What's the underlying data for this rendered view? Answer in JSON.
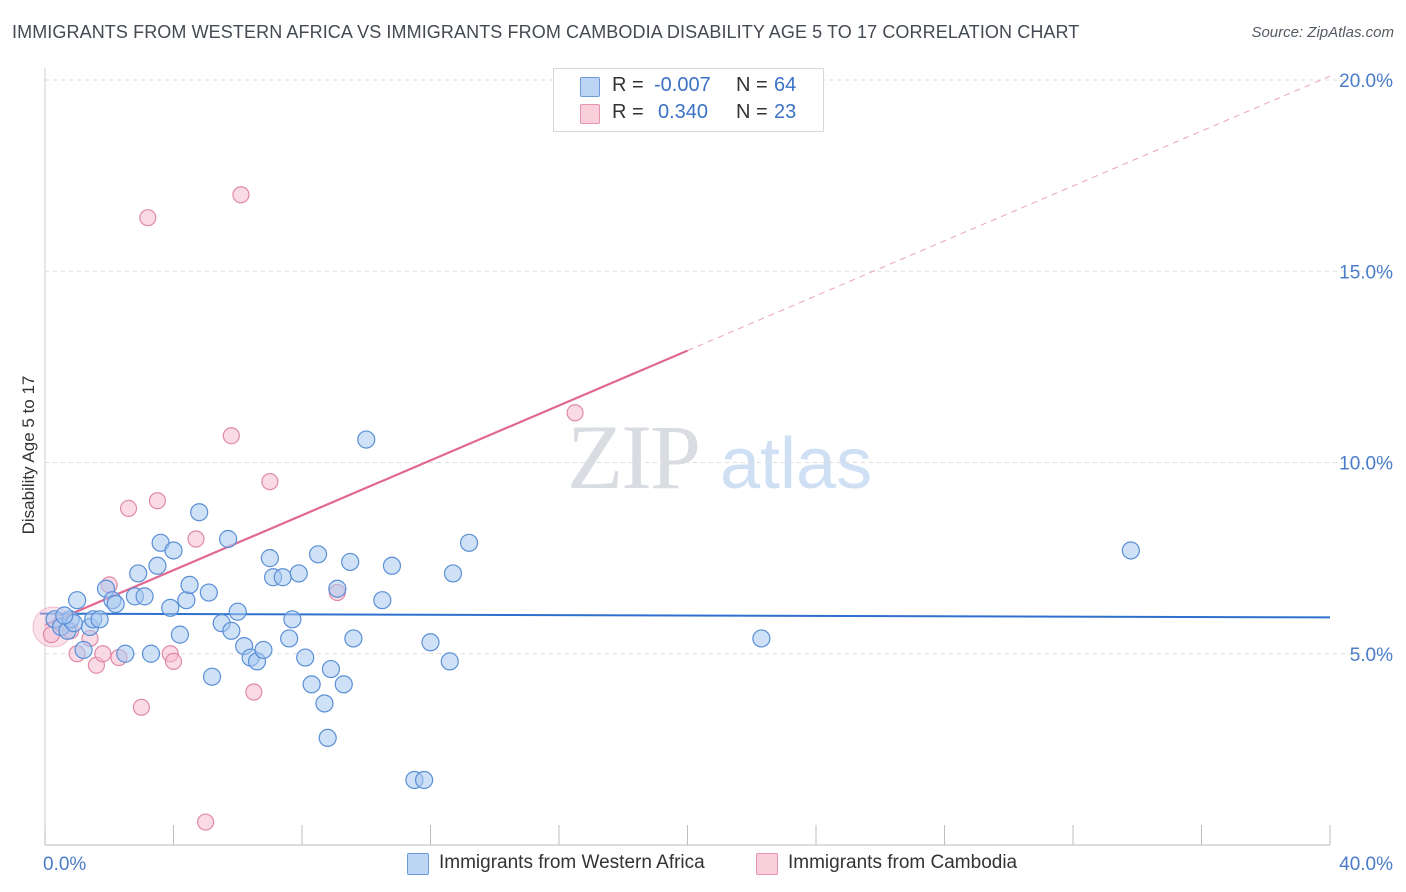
{
  "header": {
    "title": "IMMIGRANTS FROM WESTERN AFRICA VS IMMIGRANTS FROM CAMBODIA DISABILITY AGE 5 TO 17 CORRELATION CHART",
    "source": "Source: ZipAtlas.com"
  },
  "watermark": {
    "zip": "ZIP",
    "atlas": "atlas"
  },
  "legend": {
    "r_label": "R =",
    "n_label": "N =",
    "series1": {
      "r": "-0.007",
      "n": "64"
    },
    "series2": {
      "r": "0.340",
      "n": "23"
    }
  },
  "bottom_legend": {
    "series1": "Immigrants from Western Africa",
    "series2": "Immigrants from Cambodia"
  },
  "colors": {
    "series1_fill": "#a8c8f0",
    "series1_stroke": "#5a8fd6",
    "series1_line": "#2f6fce",
    "series2_fill": "#f6bcd0",
    "series2_stroke": "#e08aa8",
    "series2_line": "#e06890",
    "tick_text": "#4a7cc9"
  },
  "chart_data": {
    "type": "scatter",
    "title": "IMMIGRANTS FROM WESTERN AFRICA VS IMMIGRANTS FROM CAMBODIA DISABILITY AGE 5 TO 17 CORRELATION CHART",
    "xlabel": "",
    "ylabel": "Disability Age 5 to 17",
    "xlim": [
      0,
      40
    ],
    "ylim": [
      0,
      20
    ],
    "x_tick_labels": [
      {
        "value": 0,
        "label": "0.0%"
      },
      {
        "value": 40,
        "label": "40.0%"
      }
    ],
    "y_tick_labels": [
      {
        "value": 5,
        "label": "5.0%"
      },
      {
        "value": 10,
        "label": "10.0%"
      },
      {
        "value": 15,
        "label": "15.0%"
      },
      {
        "value": 20,
        "label": "20.0%"
      }
    ],
    "grid": true,
    "legend_position": "top-center",
    "series": [
      {
        "name": "Immigrants from Western Africa",
        "r": -0.007,
        "n": 64,
        "trend": {
          "x": [
            0,
            40
          ],
          "y": [
            6.05,
            5.95
          ],
          "style": "solid"
        },
        "points": [
          [
            0.3,
            5.9
          ],
          [
            0.5,
            5.7
          ],
          [
            0.7,
            5.6
          ],
          [
            0.8,
            5.9
          ],
          [
            0.9,
            5.8
          ],
          [
            1.0,
            6.4
          ],
          [
            1.2,
            5.1
          ],
          [
            1.4,
            5.7
          ],
          [
            1.5,
            5.9
          ],
          [
            1.7,
            5.9
          ],
          [
            1.9,
            6.7
          ],
          [
            2.1,
            6.4
          ],
          [
            2.2,
            6.3
          ],
          [
            2.5,
            5.0
          ],
          [
            2.8,
            6.5
          ],
          [
            2.9,
            7.1
          ],
          [
            3.1,
            6.5
          ],
          [
            3.3,
            5.0
          ],
          [
            3.5,
            7.3
          ],
          [
            3.6,
            7.9
          ],
          [
            3.9,
            6.2
          ],
          [
            4.0,
            7.7
          ],
          [
            4.2,
            5.5
          ],
          [
            4.4,
            6.4
          ],
          [
            4.5,
            6.8
          ],
          [
            4.8,
            8.7
          ],
          [
            5.1,
            6.6
          ],
          [
            5.2,
            4.4
          ],
          [
            5.5,
            5.8
          ],
          [
            5.7,
            8.0
          ],
          [
            5.8,
            5.6
          ],
          [
            6.0,
            6.1
          ],
          [
            6.2,
            5.2
          ],
          [
            6.4,
            4.9
          ],
          [
            6.6,
            4.8
          ],
          [
            6.8,
            5.1
          ],
          [
            7.0,
            7.5
          ],
          [
            7.1,
            7.0
          ],
          [
            7.4,
            7.0
          ],
          [
            7.6,
            5.4
          ],
          [
            7.7,
            5.9
          ],
          [
            7.9,
            7.1
          ],
          [
            8.1,
            4.9
          ],
          [
            8.3,
            4.2
          ],
          [
            8.5,
            7.6
          ],
          [
            8.7,
            3.7
          ],
          [
            8.9,
            4.6
          ],
          [
            9.1,
            6.7
          ],
          [
            9.3,
            4.2
          ],
          [
            9.5,
            7.4
          ],
          [
            9.6,
            5.4
          ],
          [
            10.0,
            10.6
          ],
          [
            10.5,
            6.4
          ],
          [
            10.8,
            7.3
          ],
          [
            11.5,
            1.7
          ],
          [
            11.8,
            1.7
          ],
          [
            12.0,
            5.3
          ],
          [
            12.6,
            4.8
          ],
          [
            12.7,
            7.1
          ],
          [
            8.8,
            2.8
          ],
          [
            13.2,
            7.9
          ],
          [
            22.3,
            5.4
          ],
          [
            33.8,
            7.7
          ],
          [
            0.6,
            6.0
          ]
        ]
      },
      {
        "name": "Immigrants from Cambodia",
        "r": 0.34,
        "n": 23,
        "trend": {
          "x": [
            0,
            40
          ],
          "y": [
            5.75,
            20.1
          ],
          "solid_until_x": 20.0,
          "style": "solid-then-dashed"
        },
        "points": [
          [
            0.2,
            5.5
          ],
          [
            0.5,
            5.8
          ],
          [
            0.8,
            5.6
          ],
          [
            1.0,
            5.0
          ],
          [
            1.4,
            5.4
          ],
          [
            1.6,
            4.7
          ],
          [
            1.8,
            5.0
          ],
          [
            2.0,
            6.8
          ],
          [
            2.3,
            4.9
          ],
          [
            2.6,
            8.8
          ],
          [
            3.0,
            3.6
          ],
          [
            3.2,
            16.4
          ],
          [
            3.5,
            9.0
          ],
          [
            3.9,
            5.0
          ],
          [
            4.0,
            4.8
          ],
          [
            4.7,
            8.0
          ],
          [
            5.0,
            0.6
          ],
          [
            5.8,
            10.7
          ],
          [
            6.1,
            17.0
          ],
          [
            6.5,
            4.0
          ],
          [
            7.0,
            9.5
          ],
          [
            9.1,
            6.6
          ],
          [
            16.5,
            11.3
          ]
        ]
      }
    ]
  }
}
